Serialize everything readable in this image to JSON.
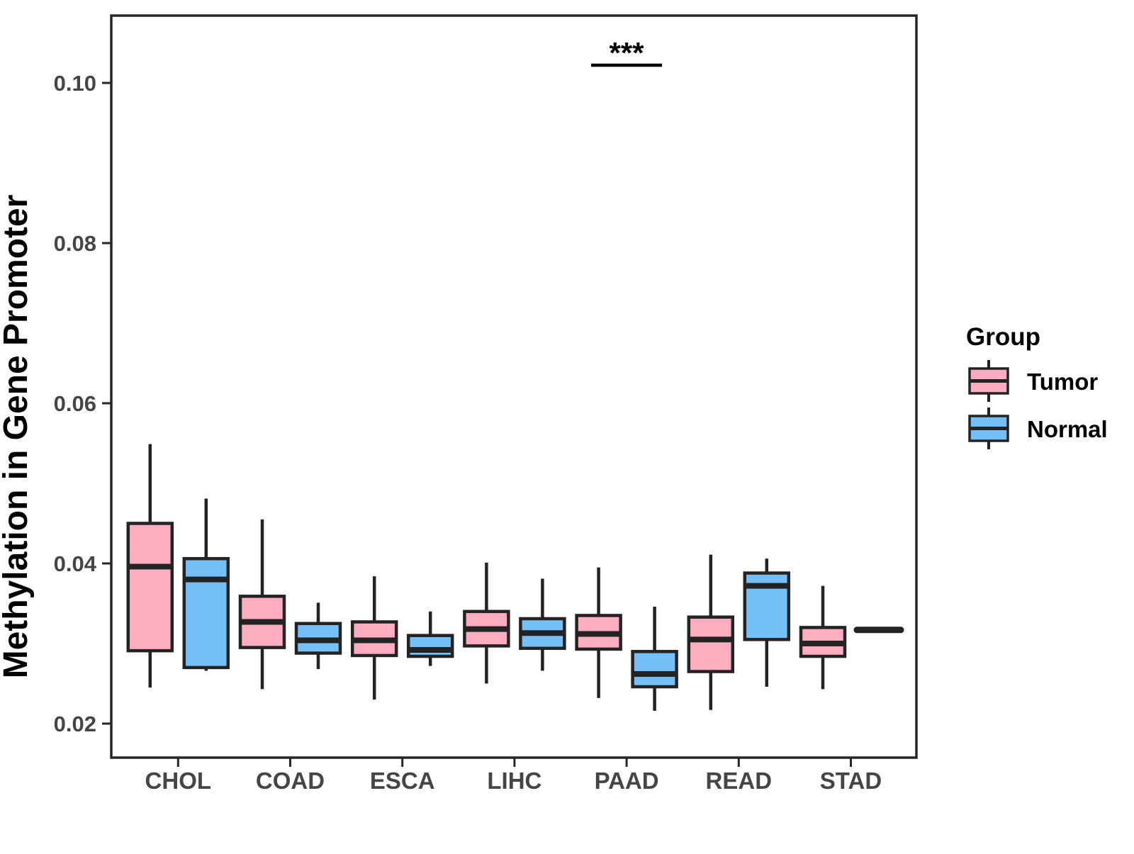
{
  "chart_data": {
    "type": "box",
    "title": "",
    "ylabel": "Methylation in Gene Promoter",
    "xlabel": "",
    "categories": [
      "CHOL",
      "COAD",
      "ESCA",
      "LIHC",
      "PAAD",
      "READ",
      "STAD"
    ],
    "y_axis": {
      "ticks": [
        {
          "label": "0.02",
          "value": 0.02
        },
        {
          "label": "0.04",
          "value": 0.04
        },
        {
          "label": "0.06",
          "value": 0.06
        },
        {
          "label": "0.08",
          "value": 0.08
        },
        {
          "label": "0.10",
          "value": 0.1
        }
      ],
      "range": [
        0.0157,
        0.1085
      ],
      "grid": false
    },
    "series": [
      {
        "name": "Tumor",
        "color": "#FCAEC0",
        "boxes": [
          {
            "low": 0.0245,
            "q1": 0.0291,
            "median": 0.0396,
            "q3": 0.045,
            "high": 0.0549
          },
          {
            "low": 0.0243,
            "q1": 0.0295,
            "median": 0.0327,
            "q3": 0.0359,
            "high": 0.0455
          },
          {
            "low": 0.023,
            "q1": 0.0285,
            "median": 0.0304,
            "q3": 0.0327,
            "high": 0.0384
          },
          {
            "low": 0.025,
            "q1": 0.0297,
            "median": 0.0318,
            "q3": 0.034,
            "high": 0.0401
          },
          {
            "low": 0.0232,
            "q1": 0.0293,
            "median": 0.0312,
            "q3": 0.0335,
            "high": 0.0395
          },
          {
            "low": 0.0217,
            "q1": 0.0265,
            "median": 0.0305,
            "q3": 0.0333,
            "high": 0.0411
          },
          {
            "low": 0.0243,
            "q1": 0.0284,
            "median": 0.03,
            "q3": 0.032,
            "high": 0.0372
          }
        ]
      },
      {
        "name": "Normal",
        "color": "#74BFF8",
        "boxes": [
          {
            "low": 0.0266,
            "q1": 0.027,
            "median": 0.038,
            "q3": 0.0406,
            "high": 0.0481
          },
          {
            "low": 0.0268,
            "q1": 0.0288,
            "median": 0.0304,
            "q3": 0.0325,
            "high": 0.0351
          },
          {
            "low": 0.0272,
            "q1": 0.0284,
            "median": 0.0292,
            "q3": 0.031,
            "high": 0.034
          },
          {
            "low": 0.0266,
            "q1": 0.0294,
            "median": 0.0313,
            "q3": 0.0331,
            "high": 0.0381
          },
          {
            "low": 0.0216,
            "q1": 0.0246,
            "median": 0.0262,
            "q3": 0.029,
            "high": 0.0346
          },
          {
            "low": 0.0246,
            "q1": 0.0305,
            "median": 0.0372,
            "q3": 0.0388,
            "high": 0.0406
          },
          {
            "low": 0.0317,
            "q1": 0.0317,
            "median": 0.0317,
            "q3": 0.0317,
            "high": 0.0317
          }
        ]
      }
    ],
    "annotation": {
      "text": "***",
      "category": "PAAD"
    },
    "style": {
      "box_border": "#232323",
      "panel_border": "#262626",
      "tick_color": "#262626",
      "background": "#FFFFFF"
    }
  },
  "legend": {
    "title": "Group",
    "position": "right",
    "items": [
      {
        "label": "Tumor",
        "color": "#FCAEC0"
      },
      {
        "label": "Normal",
        "color": "#74BFF8"
      }
    ]
  }
}
